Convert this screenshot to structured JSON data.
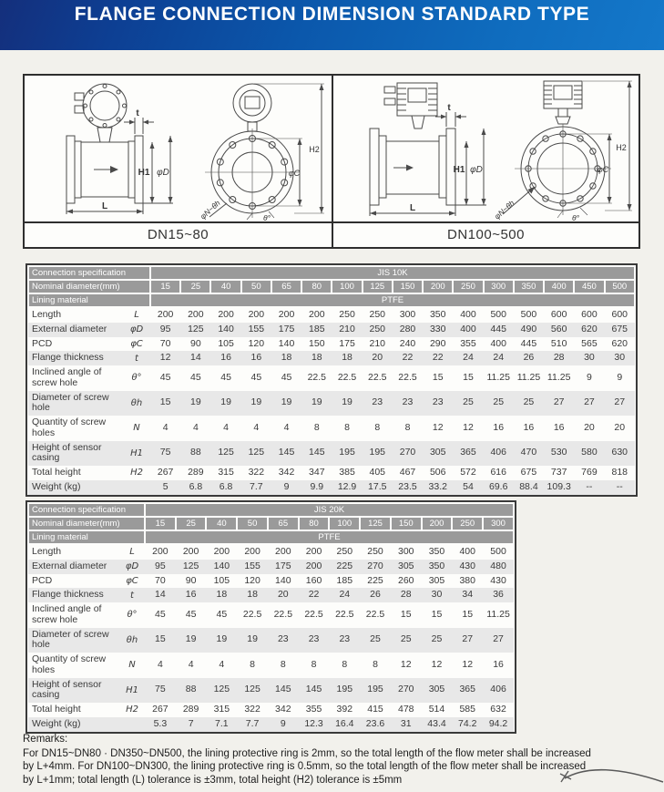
{
  "header": {
    "title": "FLANGE CONNECTION DIMENSION STANDARD TYPE"
  },
  "diagram": {
    "labels": {
      "t": "t",
      "h1": "H1",
      "phid": "φD",
      "l": "L",
      "h2": "H2",
      "phic": "φC",
      "phin": "φN~θh",
      "theta": "θ°"
    },
    "left": {
      "caption": "DN15~80"
    },
    "right": {
      "caption": "DN100~500"
    }
  },
  "tables": [
    {
      "connection_spec_label": "Connection specification",
      "connection_spec_value": "JIS 10K",
      "nominal_label": "Nominal diameter(mm)",
      "diameters": [
        "15",
        "25",
        "40",
        "50",
        "65",
        "80",
        "100",
        "125",
        "150",
        "200",
        "250",
        "300",
        "350",
        "400",
        "450",
        "500"
      ],
      "lining_label": "Lining material",
      "lining_value": "PTFE",
      "rows": [
        {
          "label": "Length",
          "symbol": "L",
          "values": [
            "200",
            "200",
            "200",
            "200",
            "200",
            "200",
            "250",
            "250",
            "300",
            "350",
            "400",
            "500",
            "500",
            "600",
            "600",
            "600"
          ]
        },
        {
          "label": "External diameter",
          "symbol": "φD",
          "values": [
            "95",
            "125",
            "140",
            "155",
            "175",
            "185",
            "210",
            "250",
            "280",
            "330",
            "400",
            "445",
            "490",
            "560",
            "620",
            "675"
          ]
        },
        {
          "label": "PCD",
          "symbol": "φC",
          "values": [
            "70",
            "90",
            "105",
            "120",
            "140",
            "150",
            "175",
            "210",
            "240",
            "290",
            "355",
            "400",
            "445",
            "510",
            "565",
            "620"
          ]
        },
        {
          "label": "Flange thickness",
          "symbol": "t",
          "values": [
            "12",
            "14",
            "16",
            "16",
            "18",
            "18",
            "18",
            "20",
            "22",
            "22",
            "24",
            "24",
            "26",
            "28",
            "30",
            "30"
          ]
        },
        {
          "label": "Inclined angle of screw hole",
          "symbol": "θ°",
          "values": [
            "45",
            "45",
            "45",
            "45",
            "45",
            "22.5",
            "22.5",
            "22.5",
            "22.5",
            "15",
            "15",
            "11.25",
            "11.25",
            "11.25",
            "9",
            "9"
          ]
        },
        {
          "label": "Diameter of screw hole",
          "symbol": "θh",
          "values": [
            "15",
            "19",
            "19",
            "19",
            "19",
            "19",
            "19",
            "23",
            "23",
            "23",
            "25",
            "25",
            "25",
            "27",
            "27",
            "27"
          ]
        },
        {
          "label": "Quantity of screw holes",
          "symbol": "N",
          "values": [
            "4",
            "4",
            "4",
            "4",
            "4",
            "8",
            "8",
            "8",
            "8",
            "12",
            "12",
            "16",
            "16",
            "16",
            "20",
            "20"
          ]
        },
        {
          "label": "Height of sensor casing",
          "symbol": "H1",
          "values": [
            "75",
            "88",
            "125",
            "125",
            "145",
            "145",
            "195",
            "195",
            "270",
            "305",
            "365",
            "406",
            "470",
            "530",
            "580",
            "630"
          ]
        },
        {
          "label": "Total height",
          "symbol": "H2",
          "values": [
            "267",
            "289",
            "315",
            "322",
            "342",
            "347",
            "385",
            "405",
            "467",
            "506",
            "572",
            "616",
            "675",
            "737",
            "769",
            "818"
          ]
        },
        {
          "label": "Weight (kg)",
          "symbol": "",
          "values": [
            "5",
            "6.8",
            "6.8",
            "7.7",
            "9",
            "9.9",
            "12.9",
            "17.5",
            "23.5",
            "33.2",
            "54",
            "69.6",
            "88.4",
            "109.3",
            "--",
            "--"
          ]
        }
      ]
    },
    {
      "connection_spec_label": "Connection specification",
      "connection_spec_value": "JIS 20K",
      "nominal_label": "Nominal diameter(mm)",
      "diameters": [
        "15",
        "25",
        "40",
        "50",
        "65",
        "80",
        "100",
        "125",
        "150",
        "200",
        "250",
        "300"
      ],
      "lining_label": "Lining material",
      "lining_value": "PTFE",
      "rows": [
        {
          "label": "Length",
          "symbol": "L",
          "values": [
            "200",
            "200",
            "200",
            "200",
            "200",
            "200",
            "250",
            "250",
            "300",
            "350",
            "400",
            "500"
          ]
        },
        {
          "label": "External diameter",
          "symbol": "φD",
          "values": [
            "95",
            "125",
            "140",
            "155",
            "175",
            "200",
            "225",
            "270",
            "305",
            "350",
            "430",
            "480"
          ]
        },
        {
          "label": "PCD",
          "symbol": "φC",
          "values": [
            "70",
            "90",
            "105",
            "120",
            "140",
            "160",
            "185",
            "225",
            "260",
            "305",
            "380",
            "430"
          ]
        },
        {
          "label": "Flange thickness",
          "symbol": "t",
          "values": [
            "14",
            "16",
            "18",
            "18",
            "20",
            "22",
            "24",
            "26",
            "28",
            "30",
            "34",
            "36"
          ]
        },
        {
          "label": "Inclined angle of screw hole",
          "symbol": "θ°",
          "values": [
            "45",
            "45",
            "45",
            "22.5",
            "22.5",
            "22.5",
            "22.5",
            "22.5",
            "15",
            "15",
            "15",
            "11.25"
          ]
        },
        {
          "label": "Diameter of screw hole",
          "symbol": "θh",
          "values": [
            "15",
            "19",
            "19",
            "19",
            "23",
            "23",
            "23",
            "25",
            "25",
            "25",
            "27",
            "27"
          ]
        },
        {
          "label": "Quantity of screw holes",
          "symbol": "N",
          "values": [
            "4",
            "4",
            "4",
            "8",
            "8",
            "8",
            "8",
            "8",
            "12",
            "12",
            "12",
            "16"
          ]
        },
        {
          "label": "Height of sensor casing",
          "symbol": "H1",
          "values": [
            "75",
            "88",
            "125",
            "125",
            "145",
            "145",
            "195",
            "195",
            "270",
            "305",
            "365",
            "406"
          ]
        },
        {
          "label": "Total height",
          "symbol": "H2",
          "values": [
            "267",
            "289",
            "315",
            "322",
            "342",
            "355",
            "392",
            "415",
            "478",
            "514",
            "585",
            "632"
          ]
        },
        {
          "label": "Weight (kg)",
          "symbol": "",
          "values": [
            "5.3",
            "7",
            "7.1",
            "7.7",
            "9",
            "12.3",
            "16.4",
            "23.6",
            "31",
            "43.4",
            "74.2",
            "94.2"
          ]
        }
      ]
    }
  ],
  "remarks": {
    "title": "Remarks:",
    "lines": [
      "For DN15~DN80 · DN350~DN500, the lining protective ring is 2mm, so the total length of the flow meter shall be increased",
      "by L+4mm. For DN100~DN300, the lining protective ring is 0.5mm, so the total length of the flow meter shall be increased",
      "by L+1mm; total length (L) tolerance is ±3mm, total height (H2)  tolerance is ±5mm"
    ]
  },
  "colors": {
    "banner_dark": "#142f7c",
    "banner_light": "#1478ca",
    "header_gray": "#9a9a9a",
    "stripe_gray": "#e8e8e8"
  }
}
